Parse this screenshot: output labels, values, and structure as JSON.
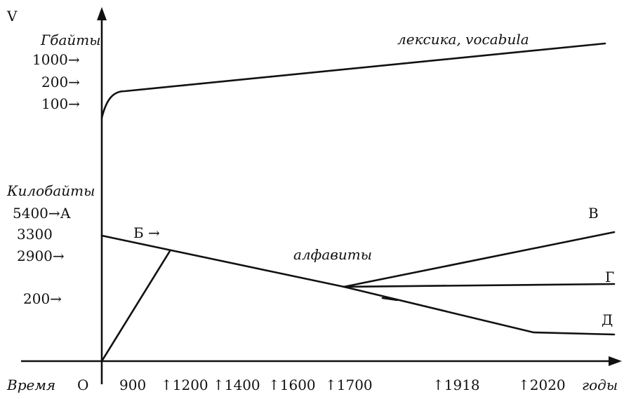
{
  "axes": {
    "y_name": "V",
    "x_left_name": "Время",
    "origin": "О",
    "x_right_name": "годы"
  },
  "units": {
    "upper": "Гбайты",
    "lower": "Килобайты"
  },
  "upper_ticks": [
    "1000→",
    "200→",
    "100→"
  ],
  "lower_ticks": [
    "5400→А",
    "3300",
    "2900→",
    "200→"
  ],
  "x_ticks": [
    "900",
    "↑1200",
    "↑1400",
    "↑1600",
    "↑1700",
    "↑1918",
    "↑2020"
  ],
  "curve_labels": {
    "lexicon": "лексика, vocabula",
    "alphabets": "алфавиты",
    "b": "Б →",
    "v": "В",
    "g": "Г",
    "d": "Д"
  }
}
